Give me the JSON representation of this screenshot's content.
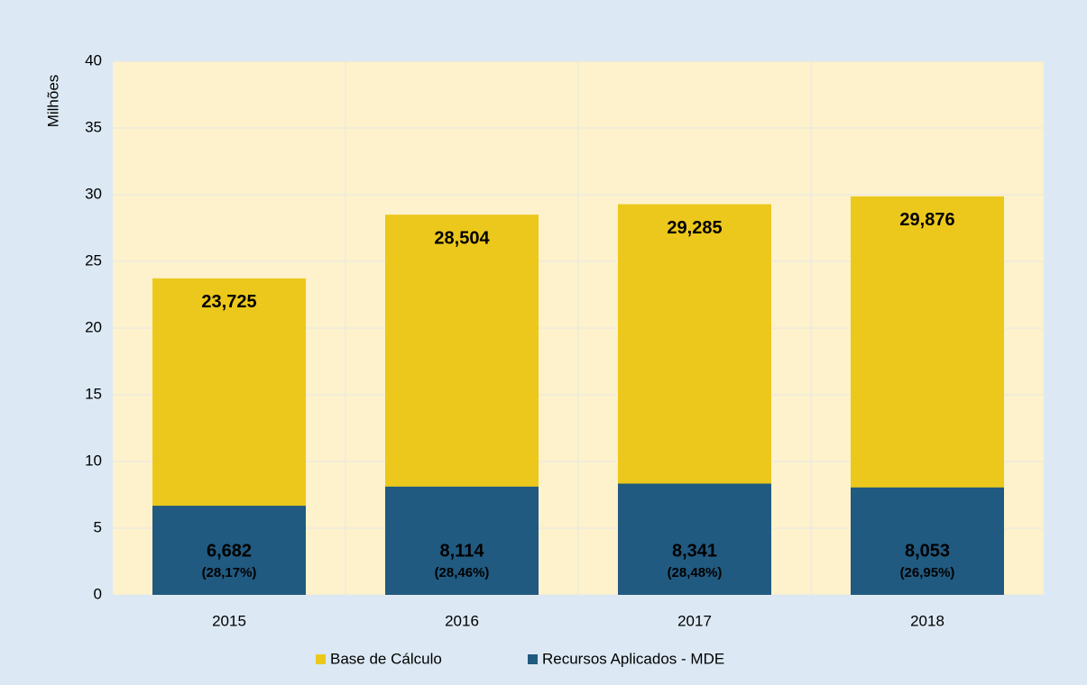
{
  "chart_data": {
    "type": "bar",
    "y_label": "Milhões",
    "categories": [
      "2015",
      "2016",
      "2017",
      "2018"
    ],
    "series": [
      {
        "name": "Base de Cálculo",
        "color": "#ecc81c",
        "values": [
          23.725,
          28.504,
          29.285,
          29.876
        ],
        "value_labels": [
          "23,725",
          "28,504",
          "29,285",
          "29,876"
        ]
      },
      {
        "name": "Recursos Aplicados - MDE",
        "color": "#215a80",
        "values": [
          6.682,
          8.114,
          8.341,
          8.053
        ],
        "value_labels": [
          "6,682",
          "8,114",
          "8,341",
          "8,053"
        ],
        "annotations": [
          "(28,17%)",
          "(28,46%)",
          "(28,48%)",
          "(26,95%)"
        ]
      }
    ],
    "ylim": [
      0,
      40
    ],
    "yticks": [
      0,
      5,
      10,
      15,
      20,
      25,
      30,
      35,
      40
    ],
    "grid": true,
    "legend": "bottom"
  }
}
